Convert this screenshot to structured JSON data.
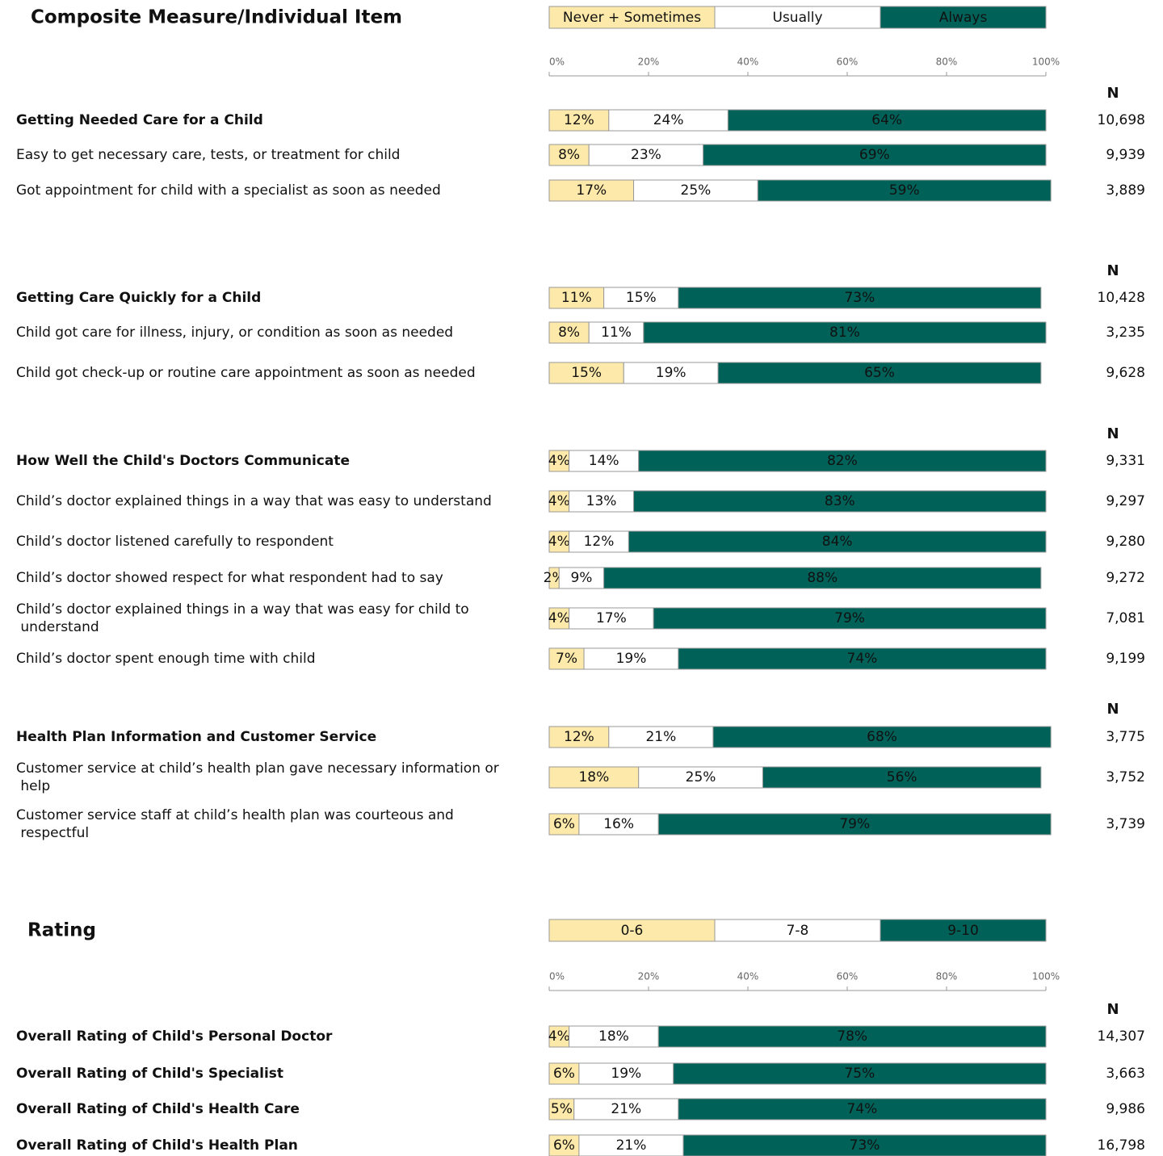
{
  "chart_data": [
    {
      "type": "stacked_bar",
      "title": "Composite Measure/Individual Item",
      "legend": [
        {
          "name": "Never + Sometimes",
          "color": "#fde9a9"
        },
        {
          "name": "Usually",
          "color": "#ffffff"
        },
        {
          "name": "Always",
          "color": "#006158"
        }
      ],
      "xlim": [
        0,
        100
      ],
      "xticks": [
        {
          "value": 0,
          "label": "0%"
        },
        {
          "value": 20,
          "label": "20%"
        },
        {
          "value": 40,
          "label": "40%"
        },
        {
          "value": 60,
          "label": "60%"
        },
        {
          "value": 80,
          "label": "80%"
        },
        {
          "value": 100,
          "label": "100%"
        }
      ],
      "groups": [
        {
          "n_header": "N",
          "categories": [
            "Getting Needed Care for a Child",
            "Easy to get necessary care, tests, or treatment for child",
            "Got appointment for child with a specialist as soon as needed"
          ],
          "n": [
            "10,698",
            "9,939",
            "3,889"
          ],
          "series": [
            {
              "values": [
                12,
                8,
                17
              ],
              "value_labels": [
                "12%",
                "8%",
                "17%"
              ]
            },
            {
              "values": [
                24,
                23,
                25
              ],
              "value_labels": [
                "24%",
                "23%",
                "25%"
              ]
            },
            {
              "values": [
                64,
                69,
                59
              ],
              "value_labels": [
                "64%",
                "69%",
                "59%"
              ]
            }
          ]
        },
        {
          "n_header": "N",
          "categories": [
            "Getting Care Quickly for a Child",
            "Child got care for illness, injury, or condition as soon as needed",
            "Child got check-up or routine care appointment as soon as needed"
          ],
          "n": [
            "10,428",
            "3,235",
            "9,628"
          ],
          "series": [
            {
              "values": [
                11,
                8,
                15
              ],
              "value_labels": [
                "11%",
                "8%",
                "15%"
              ]
            },
            {
              "values": [
                15,
                11,
                19
              ],
              "value_labels": [
                "15%",
                "11%",
                "19%"
              ]
            },
            {
              "values": [
                73,
                81,
                65
              ],
              "value_labels": [
                "73%",
                "81%",
                "65%"
              ]
            }
          ]
        },
        {
          "n_header": "N",
          "categories": [
            "How Well the Child's Doctors Communicate",
            "Child’s doctor explained things in a way that was easy to understand",
            "Child’s doctor listened carefully to respondent",
            "Child’s doctor showed respect for what respondent had to say",
            "Child’s doctor explained things in a way that was easy for child to understand",
            "Child’s doctor spent enough time with child"
          ],
          "n": [
            "9,331",
            "9,297",
            "9,280",
            "9,272",
            "7,081",
            "9,199"
          ],
          "series": [
            {
              "values": [
                4,
                4,
                4,
                2,
                4,
                7
              ],
              "value_labels": [
                "4%",
                "4%",
                "4%",
                "2%",
                "4%",
                "7%"
              ]
            },
            {
              "values": [
                14,
                13,
                12,
                9,
                17,
                19
              ],
              "value_labels": [
                "14%",
                "13%",
                "12%",
                "9%",
                "17%",
                "19%"
              ]
            },
            {
              "values": [
                82,
                83,
                84,
                88,
                79,
                74
              ],
              "value_labels": [
                "82%",
                "83%",
                "84%",
                "88%",
                "79%",
                "74%"
              ]
            }
          ]
        },
        {
          "n_header": "N",
          "categories": [
            "Health Plan Information and Customer Service",
            "Customer service at child’s health plan gave necessary information or help",
            "Customer service staff at child’s health plan was courteous and respectful"
          ],
          "n": [
            "3,775",
            "3,752",
            "3,739"
          ],
          "series": [
            {
              "values": [
                12,
                18,
                6
              ],
              "value_labels": [
                "12%",
                "18%",
                "6%"
              ]
            },
            {
              "values": [
                21,
                25,
                16
              ],
              "value_labels": [
                "21%",
                "25%",
                "16%"
              ]
            },
            {
              "values": [
                68,
                56,
                79
              ],
              "value_labels": [
                "68%",
                "56%",
                "79%"
              ]
            }
          ]
        }
      ]
    },
    {
      "type": "stacked_bar",
      "title": "Rating",
      "legend": [
        {
          "name": "0-6",
          "color": "#fde9a9"
        },
        {
          "name": "7-8",
          "color": "#ffffff"
        },
        {
          "name": "9-10",
          "color": "#006158"
        }
      ],
      "xlim": [
        0,
        100
      ],
      "xticks": [
        {
          "value": 0,
          "label": "0%"
        },
        {
          "value": 20,
          "label": "20%"
        },
        {
          "value": 40,
          "label": "40%"
        },
        {
          "value": 60,
          "label": "60%"
        },
        {
          "value": 80,
          "label": "80%"
        },
        {
          "value": 100,
          "label": "100%"
        }
      ],
      "groups": [
        {
          "n_header": "N",
          "categories": [
            "Overall Rating of Child's Personal Doctor",
            "Overall Rating of Child's Specialist",
            "Overall Rating of Child's Health Care",
            "Overall Rating of Child's Health Plan"
          ],
          "n": [
            "14,307",
            "3,663",
            "9,986",
            "16,798"
          ],
          "series": [
            {
              "values": [
                4,
                6,
                5,
                6
              ],
              "value_labels": [
                "4%",
                "6%",
                "5%",
                "6%"
              ]
            },
            {
              "values": [
                18,
                19,
                21,
                21
              ],
              "value_labels": [
                "18%",
                "19%",
                "21%",
                "21%"
              ]
            },
            {
              "values": [
                78,
                75,
                74,
                73
              ],
              "value_labels": [
                "78%",
                "75%",
                "74%",
                "73%"
              ]
            }
          ]
        }
      ]
    }
  ]
}
